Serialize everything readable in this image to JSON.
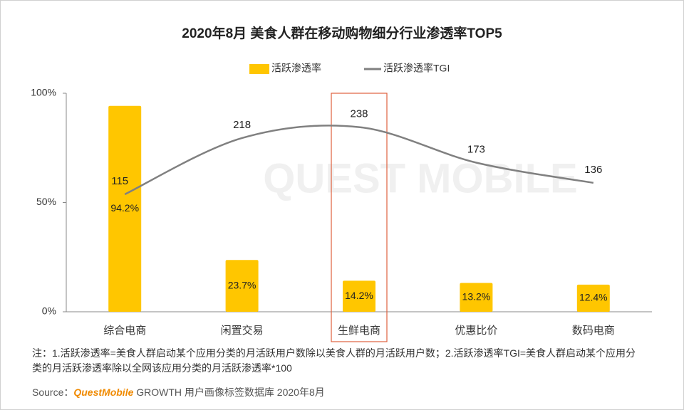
{
  "chart_data": {
    "type": "bar",
    "title": "2020年8月 美食人群在移动购物细分行业渗透率TOP5",
    "categories": [
      "综合电商",
      "闲置交易",
      "生鲜电商",
      "优惠比价",
      "数码电商"
    ],
    "series": [
      {
        "name": "活跃渗透率",
        "type": "bar",
        "color": "#ffc600",
        "values": [
          94.2,
          23.7,
          14.2,
          13.2,
          12.4
        ],
        "value_labels": [
          "94.2%",
          "23.7%",
          "14.2%",
          "13.2%",
          "12.4%"
        ]
      },
      {
        "name": "活跃渗透率TGI",
        "type": "line",
        "axis": "y2",
        "color": "#808080",
        "values": [
          115,
          218,
          238,
          173,
          136
        ]
      }
    ],
    "ylim": [
      0,
      100
    ],
    "yticks": [
      {
        "value": 0,
        "label": "0%"
      },
      {
        "value": 50,
        "label": "50%"
      },
      {
        "value": 100,
        "label": "100%"
      }
    ],
    "y2lim": [
      -100,
      300
    ],
    "legend": "top",
    "highlight_category": 2,
    "watermark": "QUEST MOBILE",
    "note_label": "注：",
    "note": "1.活跃渗透率=美食人群启动某个应用分类的月活跃用户数除以美食人群的月活跃用户数；2.活跃渗透率TGI=美食人群启动某个应用分类的月活跃渗透率除以全网该应用分类的月活跃渗透率*100",
    "source_label": "Source：",
    "source_brand": "QuestMobile",
    "source_text": " GROWTH 用户画像标签数据库 2020年8月"
  }
}
